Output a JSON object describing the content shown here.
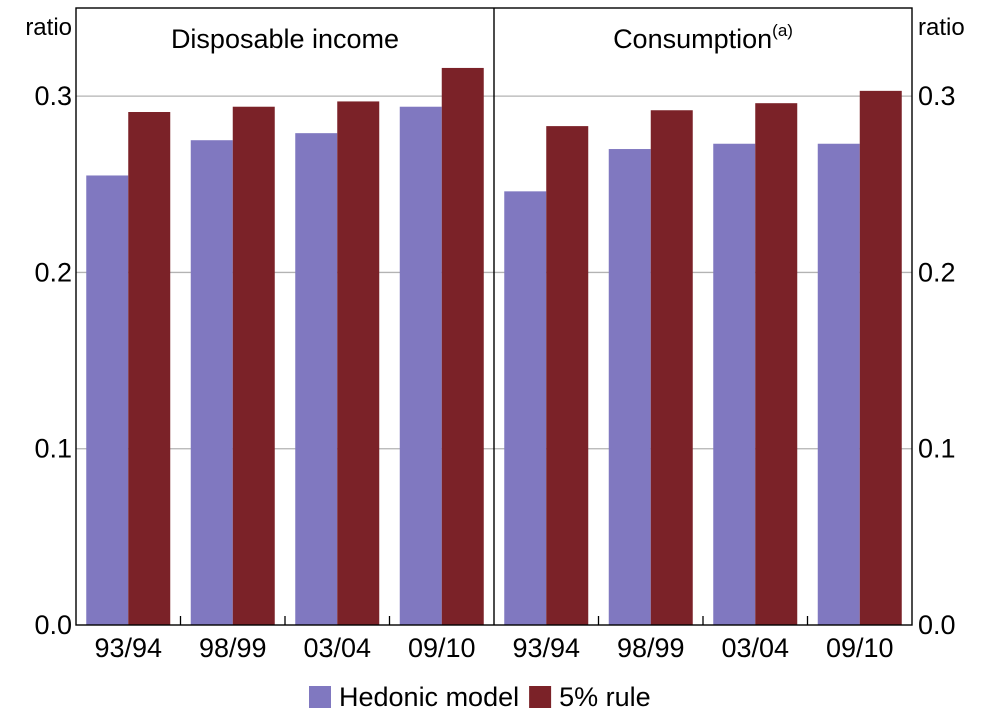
{
  "chart_data": {
    "type": "bar",
    "axis_unit_left": "ratio",
    "axis_unit_right": "ratio",
    "ylim": [
      0,
      0.35
    ],
    "yticks": [
      0.0,
      0.1,
      0.2,
      0.3
    ],
    "ytick_labels": [
      "0.0",
      "0.1",
      "0.2",
      "0.3"
    ],
    "grid": true,
    "legend_position": "bottom",
    "colors": {
      "Hedonic model": "#8078c0",
      "5% rule": "#7b2228"
    },
    "panels": [
      {
        "title": "Disposable income",
        "title_superscript": "",
        "categories": [
          "93/94",
          "98/99",
          "03/04",
          "09/10"
        ],
        "series": [
          {
            "name": "Hedonic model",
            "values": [
              0.255,
              0.275,
              0.279,
              0.294
            ]
          },
          {
            "name": "5% rule",
            "values": [
              0.291,
              0.294,
              0.297,
              0.316
            ]
          }
        ]
      },
      {
        "title": "Consumption",
        "title_superscript": "(a)",
        "categories": [
          "93/94",
          "98/99",
          "03/04",
          "09/10"
        ],
        "series": [
          {
            "name": "Hedonic model",
            "values": [
              0.246,
              0.27,
              0.273,
              0.273
            ]
          },
          {
            "name": "5% rule",
            "values": [
              0.283,
              0.292,
              0.296,
              0.303
            ]
          }
        ]
      }
    ],
    "legend": [
      "Hedonic model",
      "5% rule"
    ]
  }
}
